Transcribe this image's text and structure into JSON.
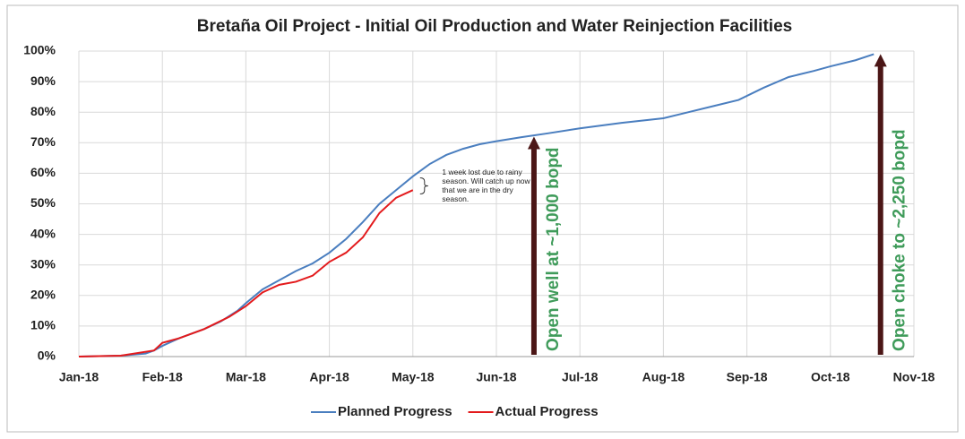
{
  "chart_data": {
    "type": "line",
    "title": "Bretaña Oil Project - Initial Oil Production and Water Reinjection Facilities",
    "xlim": [
      0,
      10
    ],
    "xticks": [
      {
        "value": 0,
        "label": "Jan-18"
      },
      {
        "value": 1,
        "label": "Feb-18"
      },
      {
        "value": 2,
        "label": "Mar-18"
      },
      {
        "value": 3,
        "label": "Apr-18"
      },
      {
        "value": 4,
        "label": "May-18"
      },
      {
        "value": 5,
        "label": "Jun-18"
      },
      {
        "value": 6,
        "label": "Jul-18"
      },
      {
        "value": 7,
        "label": "Aug-18"
      },
      {
        "value": 8,
        "label": "Sep-18"
      },
      {
        "value": 9,
        "label": "Oct-18"
      },
      {
        "value": 10,
        "label": "Nov-18"
      }
    ],
    "ylim": [
      0,
      100
    ],
    "yticks": [
      {
        "value": 0,
        "label": "0%"
      },
      {
        "value": 10,
        "label": "10%"
      },
      {
        "value": 20,
        "label": "20%"
      },
      {
        "value": 30,
        "label": "30%"
      },
      {
        "value": 40,
        "label": "40%"
      },
      {
        "value": 50,
        "label": "50%"
      },
      {
        "value": 60,
        "label": "60%"
      },
      {
        "value": 70,
        "label": "70%"
      },
      {
        "value": 80,
        "label": "80%"
      },
      {
        "value": 90,
        "label": "90%"
      },
      {
        "value": 100,
        "label": "100%"
      }
    ],
    "grid": true,
    "series": [
      {
        "name": "Planned Progress",
        "color": "#4a7ebf",
        "x": [
          0,
          0.5,
          0.8,
          0.9,
          1.0,
          1.2,
          1.5,
          1.7,
          1.9,
          2.0,
          2.2,
          2.4,
          2.6,
          2.8,
          3.0,
          3.2,
          3.4,
          3.6,
          3.8,
          4.0,
          4.2,
          4.4,
          4.6,
          4.8,
          5.0,
          5.3,
          5.6,
          6.0,
          6.5,
          7.0,
          7.3,
          7.6,
          7.9,
          8.2,
          8.5,
          8.8,
          9.0,
          9.3,
          9.52
        ],
        "values": [
          0,
          0.3,
          1,
          2,
          3.5,
          6,
          9,
          11.5,
          15,
          17.5,
          22,
          25,
          28,
          30.5,
          34,
          38.5,
          44,
          50,
          54.5,
          59,
          63,
          66,
          68,
          69.5,
          70.5,
          71.8,
          73,
          74.7,
          76.5,
          78,
          80,
          82,
          84,
          88,
          91.5,
          93.5,
          95,
          97,
          99
        ]
      },
      {
        "name": "Actual Progress",
        "color": "#e31a1c",
        "x": [
          0,
          0.5,
          0.9,
          1.0,
          1.2,
          1.5,
          1.8,
          2.0,
          2.2,
          2.4,
          2.6,
          2.8,
          3.0,
          3.2,
          3.4,
          3.6,
          3.8,
          4.0
        ],
        "values": [
          0,
          0.3,
          2,
          4.5,
          6,
          9,
          13,
          16.5,
          21,
          23.5,
          24.5,
          26.5,
          31,
          34,
          39,
          47,
          52,
          54.5
        ]
      }
    ],
    "legend": "bottom",
    "annotations": [
      {
        "text": "1 week lost due to rainy season. Will catch up now that we are in the dry season.",
        "x": 4.35,
        "y": 60
      },
      {
        "text": "Open well at ~1,000 bopd",
        "x": 5.45,
        "y": 72
      },
      {
        "text": "Open choke to ~2,250 bopd",
        "x": 9.6,
        "y": 99
      }
    ]
  }
}
